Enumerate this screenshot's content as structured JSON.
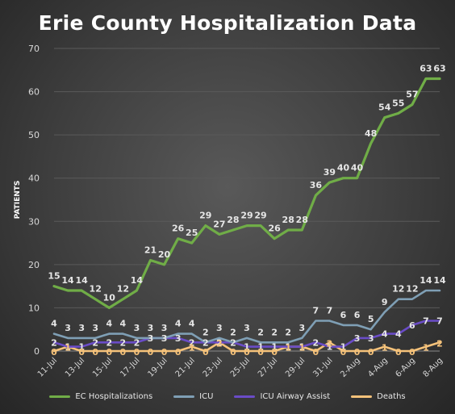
{
  "chart_data": {
    "type": "line",
    "title": "Erie County Hospitalization Data",
    "xlabel": "",
    "ylabel": "PATIENTS",
    "ylim": [
      0,
      70
    ],
    "yticks": [
      0,
      10,
      20,
      30,
      40,
      50,
      60,
      70
    ],
    "grid": true,
    "legend_position": "bottom",
    "x": [
      "11-Jul",
      "12-Jul",
      "13-Jul",
      "14-Jul",
      "15-Jul",
      "16-Jul",
      "17-Jul",
      "18-Jul",
      "19-Jul",
      "20-Jul",
      "21-Jul",
      "22-Jul",
      "23-Jul",
      "24-Jul",
      "25-Jul",
      "26-Jul",
      "27-Jul",
      "28-Jul",
      "29-Jul",
      "30-Jul",
      "31-Jul",
      "1-Aug",
      "2-Aug",
      "3-Aug",
      "4-Aug",
      "5-Aug",
      "6-Aug",
      "7-Aug",
      "8-Aug"
    ],
    "x_tick_labels": [
      "11-Jul",
      "13-Jul",
      "15-Jul",
      "17-Jul",
      "19-Jul",
      "21-Jul",
      "23-Jul",
      "25-Jul",
      "27-Jul",
      "29-Jul",
      "31-Jul",
      "2-Aug",
      "4-Aug",
      "6-Aug",
      "8-Aug"
    ],
    "series": [
      {
        "name": "EC Hospitalizations",
        "color": "#70ad47",
        "values": [
          15,
          14,
          14,
          12,
          10,
          12,
          14,
          21,
          20,
          26,
          25,
          29,
          27,
          28,
          29,
          29,
          26,
          28,
          28,
          36,
          39,
          40,
          40,
          48,
          54,
          55,
          57,
          63,
          63
        ]
      },
      {
        "name": "ICU",
        "color": "#7f9fb5",
        "values": [
          4,
          3,
          3,
          3,
          4,
          4,
          3,
          3,
          3,
          4,
          4,
          2,
          3,
          2,
          3,
          2,
          2,
          2,
          3,
          7,
          7,
          6,
          6,
          5,
          9,
          12,
          12,
          14,
          14
        ]
      },
      {
        "name": "ICU Airway Assist",
        "color": "#6a4cc7",
        "values": [
          2,
          1,
          1,
          2,
          2,
          2,
          2,
          3,
          3,
          3,
          2,
          2,
          2,
          2,
          1,
          1,
          1,
          1,
          1,
          2,
          1,
          1,
          3,
          3,
          4,
          4,
          6,
          7,
          7
        ]
      },
      {
        "name": "Deaths",
        "color": "#f5c27a",
        "values": [
          0,
          1,
          0,
          0,
          0,
          0,
          0,
          0,
          0,
          0,
          1,
          0,
          2,
          0,
          0,
          0,
          0,
          1,
          1,
          0,
          2,
          0,
          0,
          0,
          1,
          0,
          0,
          1,
          2
        ]
      }
    ]
  }
}
